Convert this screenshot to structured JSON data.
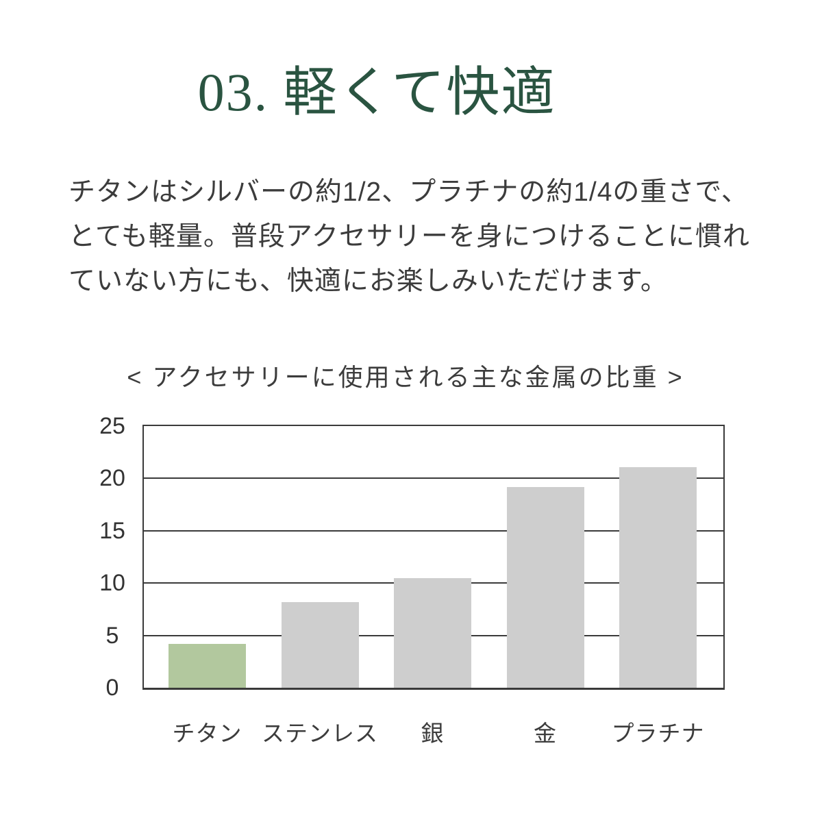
{
  "page": {
    "background_color": "#ffffff"
  },
  "header": {
    "title": "03. 軽くて快適",
    "title_color": "#2a5441"
  },
  "body": {
    "text_color": "#3c3c3c",
    "lines": [
      "チタンはシルバーの約1/2、プラチナの約1/4の重さで、",
      "とても軽量。普段アクセサリーを身につけることに慣れ",
      "ていない方にも、快適にお楽しみいただけます。"
    ]
  },
  "chart_data": {
    "type": "bar",
    "title": "< アクセサリーに使用される主な金属の比重 >",
    "categories": [
      "チタン",
      "ステンレス",
      "銀",
      "金",
      "プラチナ"
    ],
    "values": [
      4.2,
      8.2,
      10.5,
      19.2,
      21.1
    ],
    "highlight_index": 0,
    "highlight_category": "チタン",
    "bar_color_highlight": "#b2c89e",
    "bar_color_default": "#cecece",
    "axis_color": "#3a3a3a",
    "xlabel": "",
    "ylabel": "",
    "ylim": [
      0,
      25
    ],
    "yticks": [
      0,
      5,
      10,
      15,
      20,
      25
    ],
    "grid": true,
    "legend_position": "none"
  }
}
